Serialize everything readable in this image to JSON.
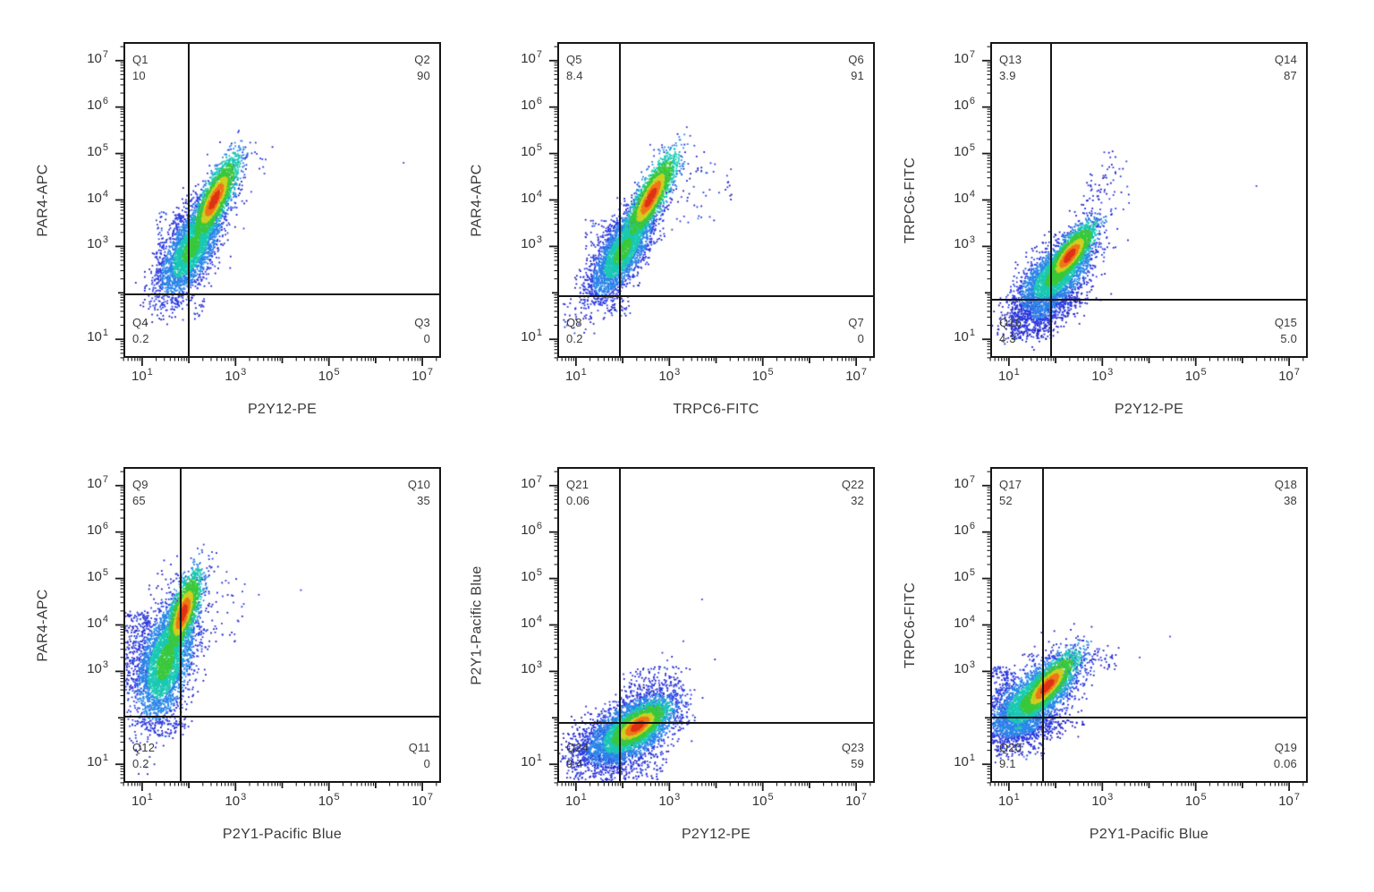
{
  "figure": {
    "kind": "flow-cytometry-quadrant-plots",
    "background": "#ffffff",
    "rows": 2,
    "cols": 3
  },
  "axis": {
    "scale": "log10",
    "log_min": 0.6,
    "log_max": 7.4,
    "base": "10",
    "x_labeled_decades": [
      1,
      3,
      5,
      7
    ],
    "y_labeled_decades": [
      1,
      3,
      4,
      5,
      6,
      7
    ]
  },
  "colors": {
    "background": "#ffffff",
    "frame": "#151515",
    "gate": "#151515",
    "axis_text": "#3a3a3a",
    "tick": "#1c1c1c",
    "density_stops": [
      {
        "max": 0.18,
        "color": "#df3418"
      },
      {
        "max": 0.32,
        "color": "#ef7818"
      },
      {
        "max": 0.46,
        "color": "#cfd020"
      },
      {
        "max": 0.72,
        "color": "#3bc83b"
      },
      {
        "max": 0.97,
        "color": "#1ac9b2"
      },
      {
        "max": 1.27,
        "color": "#2a85e8"
      },
      {
        "max": 1.62,
        "color": "#2a3ae0"
      },
      {
        "max": 9.0,
        "color": "#1d1dc2"
      }
    ]
  },
  "chart_data": {
    "type": "scatter",
    "subtype": "density-dot-plot-grid",
    "plots": [
      {
        "id": "plot-1",
        "x_label": "P2Y12-PE",
        "y_label": "PAR4-APC",
        "x_scale": "log10",
        "y_scale": "log10",
        "x_range_log": [
          0.6,
          7.4
        ],
        "y_range_log": [
          0.6,
          7.4
        ],
        "gates": {
          "x_log": 2.0,
          "y_log": 1.97
        },
        "quadrants": {
          "tl": {
            "name": "Q1",
            "value": "10"
          },
          "tr": {
            "name": "Q2",
            "value": "90"
          },
          "br": {
            "name": "Q3",
            "value": "0"
          },
          "bl": {
            "name": "Q4",
            "value": "0.2"
          }
        },
        "clusters": [
          {
            "cx": 2.55,
            "cy": 4.0,
            "maj": 0.5,
            "min": 0.13,
            "ang": 64,
            "n": 2400,
            "heat": 0
          },
          {
            "cx": 2.05,
            "cy": 2.95,
            "maj": 0.6,
            "min": 0.24,
            "ang": 62,
            "n": 3000,
            "heat": 0.5
          }
        ],
        "boxes": [
          {
            "x0": 1.3,
            "x1": 2.0,
            "y0": 2.2,
            "y1": 3.8,
            "n": 140
          },
          {
            "x0": 1.6,
            "x1": 2.35,
            "y0": 1.4,
            "y1": 1.95,
            "n": 35
          }
        ],
        "bands": [
          {
            "x0": 1.5,
            "y0": 2.2,
            "x1": 3.35,
            "y1": 5.05,
            "jx": 0.3,
            "jy": 0.22,
            "n": 150
          }
        ],
        "singles": [
          {
            "x": 6.6,
            "y": 4.8
          }
        ]
      },
      {
        "id": "plot-2",
        "x_label": "TRPC6-FITC",
        "y_label": "PAR4-APC",
        "x_scale": "log10",
        "y_scale": "log10",
        "x_range_log": [
          0.6,
          7.4
        ],
        "y_range_log": [
          0.6,
          7.4
        ],
        "gates": {
          "x_log": 1.95,
          "y_log": 1.92
        },
        "quadrants": {
          "tl": {
            "name": "Q5",
            "value": "8.4"
          },
          "tr": {
            "name": "Q6",
            "value": "91"
          },
          "br": {
            "name": "Q7",
            "value": "0"
          },
          "bl": {
            "name": "Q8",
            "value": "0.2"
          }
        },
        "clusters": [
          {
            "cx": 2.6,
            "cy": 4.05,
            "maj": 0.52,
            "min": 0.13,
            "ang": 62,
            "n": 2400,
            "heat": 0
          },
          {
            "cx": 2.0,
            "cy": 2.9,
            "maj": 0.58,
            "min": 0.22,
            "ang": 60,
            "n": 2900,
            "heat": 0.5
          }
        ],
        "boxes": [
          {
            "x0": 1.2,
            "x1": 1.95,
            "y0": 2.0,
            "y1": 3.6,
            "n": 120
          },
          {
            "x0": 1.6,
            "x1": 2.2,
            "y0": 1.5,
            "y1": 1.92,
            "n": 30
          },
          {
            "x0": 0.7,
            "x1": 1.3,
            "y0": 1.1,
            "y1": 1.9,
            "n": 18
          },
          {
            "x0": 3.0,
            "x1": 4.4,
            "y0": 3.5,
            "y1": 4.8,
            "n": 45
          }
        ],
        "bands": [
          {
            "x0": 1.4,
            "y0": 2.0,
            "x1": 3.45,
            "y1": 5.15,
            "jx": 0.28,
            "jy": 0.2,
            "n": 130
          }
        ],
        "singles": []
      },
      {
        "id": "plot-3",
        "x_label": "P2Y12-PE",
        "y_label": "TRPC6-FITC",
        "x_scale": "log10",
        "y_scale": "log10",
        "x_range_log": [
          0.6,
          7.4
        ],
        "y_range_log": [
          0.6,
          7.4
        ],
        "gates": {
          "x_log": 1.9,
          "y_log": 1.85
        },
        "quadrants": {
          "tl": {
            "name": "Q13",
            "value": "3.9"
          },
          "tr": {
            "name": "Q14",
            "value": "87"
          },
          "br": {
            "name": "Q15",
            "value": "5.0"
          },
          "bl": {
            "name": "Q16",
            "value": "4.3"
          }
        },
        "clusters": [
          {
            "cx": 2.3,
            "cy": 2.8,
            "maj": 0.4,
            "min": 0.13,
            "ang": 52,
            "n": 2200,
            "heat": 0
          },
          {
            "cx": 2.0,
            "cy": 2.35,
            "maj": 0.52,
            "min": 0.26,
            "ang": 45,
            "n": 2700,
            "heat": 0.5
          },
          {
            "cx": 1.75,
            "cy": 1.62,
            "maj": 0.45,
            "min": 0.22,
            "ang": 25,
            "n": 650,
            "heat": 1.0
          }
        ],
        "boxes": [
          {
            "x0": 1.05,
            "x1": 1.9,
            "y0": 1.0,
            "y1": 1.9,
            "n": 220
          },
          {
            "x0": 2.6,
            "x1": 3.6,
            "y0": 3.4,
            "y1": 4.6,
            "n": 40
          }
        ],
        "bands": [
          {
            "x0": 2.4,
            "y0": 3.1,
            "x1": 3.3,
            "y1": 5.0,
            "jx": 0.18,
            "jy": 0.15,
            "n": 60
          }
        ],
        "singles": [
          {
            "x": 6.3,
            "y": 4.3
          }
        ]
      },
      {
        "id": "plot-4",
        "x_label": "P2Y1-Pacific Blue",
        "y_label": "PAR4-APC",
        "x_scale": "log10",
        "y_scale": "log10",
        "x_range_log": [
          0.6,
          7.4
        ],
        "y_range_log": [
          0.6,
          7.4
        ],
        "gates": {
          "x_log": 1.82,
          "y_log": 2.02
        },
        "quadrants": {
          "tl": {
            "name": "Q9",
            "value": "65"
          },
          "tr": {
            "name": "Q10",
            "value": "35"
          },
          "br": {
            "name": "Q11",
            "value": "0"
          },
          "bl": {
            "name": "Q12",
            "value": "0.2"
          }
        },
        "clusters": [
          {
            "cx": 1.88,
            "cy": 4.25,
            "maj": 0.45,
            "min": 0.13,
            "ang": 72,
            "n": 2200,
            "heat": 0
          },
          {
            "cx": 1.5,
            "cy": 3.2,
            "maj": 0.68,
            "min": 0.28,
            "ang": 76,
            "n": 3400,
            "heat": 0.48
          }
        ],
        "boxes": [
          {
            "x0": 0.6,
            "x1": 1.15,
            "y0": 2.5,
            "y1": 4.3,
            "n": 280
          },
          {
            "x0": 1.0,
            "x1": 2.0,
            "y0": 1.6,
            "y1": 2.0,
            "n": 55
          },
          {
            "x0": 2.2,
            "x1": 3.2,
            "y0": 3.5,
            "y1": 5.0,
            "n": 45
          }
        ],
        "bands": [
          {
            "x0": 1.9,
            "y0": 4.9,
            "x1": 2.55,
            "y1": 5.15,
            "jx": 0.15,
            "jy": 0.1,
            "n": 25
          }
        ],
        "singles": [
          {
            "x": 3.5,
            "y": 4.65
          },
          {
            "x": 4.4,
            "y": 4.75
          }
        ]
      },
      {
        "id": "plot-5",
        "x_label": "P2Y12-PE",
        "y_label": "P2Y1-Pacific Blue",
        "x_scale": "log10",
        "y_scale": "log10",
        "x_range_log": [
          0.6,
          7.4
        ],
        "y_range_log": [
          0.6,
          7.4
        ],
        "gates": {
          "x_log": 1.95,
          "y_log": 1.9
        },
        "quadrants": {
          "tl": {
            "name": "Q21",
            "value": "0.06"
          },
          "tr": {
            "name": "Q22",
            "value": "32"
          },
          "br": {
            "name": "Q23",
            "value": "59"
          },
          "bl": {
            "name": "Q24",
            "value": "9.4"
          }
        },
        "clusters": [
          {
            "cx": 2.32,
            "cy": 1.82,
            "maj": 0.38,
            "min": 0.16,
            "ang": 36,
            "n": 2100,
            "heat": 0
          },
          {
            "cx": 2.18,
            "cy": 1.72,
            "maj": 0.6,
            "min": 0.3,
            "ang": 33,
            "n": 2800,
            "heat": 0.5
          },
          {
            "cx": 1.55,
            "cy": 1.4,
            "maj": 0.42,
            "min": 0.28,
            "ang": 25,
            "n": 700,
            "heat": 1.0
          }
        ],
        "boxes": [
          {
            "x0": 1.6,
            "x1": 2.9,
            "y0": 0.65,
            "y1": 1.25,
            "n": 130
          },
          {
            "x0": 2.0,
            "x1": 3.3,
            "y0": 2.1,
            "y1": 3.1,
            "n": 120
          }
        ],
        "bands": [
          {
            "x0": 2.3,
            "y0": 2.3,
            "x1": 3.0,
            "y1": 3.0,
            "jx": 0.2,
            "jy": 0.18,
            "n": 80
          }
        ],
        "singles": [
          {
            "x": 3.7,
            "y": 4.55
          },
          {
            "x": 3.3,
            "y": 3.65
          },
          {
            "x": 2.85,
            "y": 3.4
          }
        ]
      },
      {
        "id": "plot-6",
        "x_label": "P2Y1-Pacific Blue",
        "y_label": "TRPC6-FITC",
        "x_scale": "log10",
        "y_scale": "log10",
        "x_range_log": [
          0.6,
          7.4
        ],
        "y_range_log": [
          0.6,
          7.4
        ],
        "gates": {
          "x_log": 1.73,
          "y_log": 2.0
        },
        "quadrants": {
          "tl": {
            "name": "Q17",
            "value": "52"
          },
          "tr": {
            "name": "Q18",
            "value": "38"
          },
          "br": {
            "name": "Q19",
            "value": "0.06"
          },
          "bl": {
            "name": "Q20",
            "value": "9.1"
          }
        },
        "clusters": [
          {
            "cx": 1.82,
            "cy": 2.68,
            "maj": 0.45,
            "min": 0.14,
            "ang": 48,
            "n": 2100,
            "heat": 0
          },
          {
            "cx": 1.5,
            "cy": 2.4,
            "maj": 0.6,
            "min": 0.28,
            "ang": 42,
            "n": 2800,
            "heat": 0.5
          },
          {
            "cx": 1.2,
            "cy": 1.78,
            "maj": 0.5,
            "min": 0.16,
            "ang": 5,
            "n": 700,
            "heat": 0.9
          }
        ],
        "boxes": [
          {
            "x0": 0.6,
            "x1": 1.1,
            "y0": 2.0,
            "y1": 3.1,
            "n": 160
          },
          {
            "x0": 0.7,
            "x1": 1.8,
            "y0": 1.1,
            "y1": 1.6,
            "n": 60
          },
          {
            "x0": 2.3,
            "x1": 3.3,
            "y0": 2.9,
            "y1": 3.4,
            "n": 30
          }
        ],
        "bands": [
          {
            "x0": 2.2,
            "y0": 3.1,
            "x1": 3.1,
            "y1": 3.4,
            "jx": 0.15,
            "jy": 0.12,
            "n": 35
          }
        ],
        "singles": [
          {
            "x": 3.8,
            "y": 3.3
          },
          {
            "x": 4.45,
            "y": 3.75
          }
        ]
      }
    ]
  }
}
